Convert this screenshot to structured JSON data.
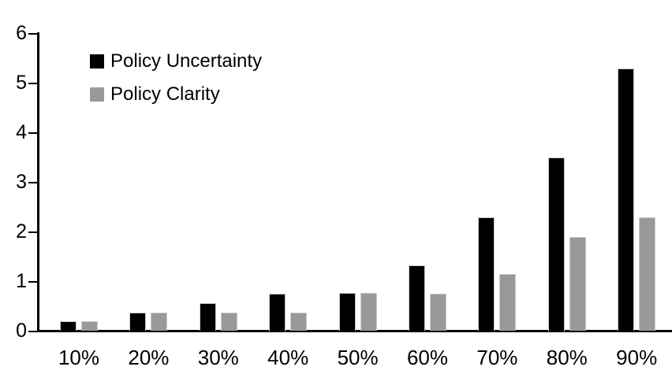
{
  "chart_data": {
    "type": "bar",
    "title": "",
    "xlabel": "",
    "ylabel": "",
    "categories": [
      "10%",
      "20%",
      "30%",
      "40%",
      "50%",
      "60%",
      "70%",
      "80%",
      "90%"
    ],
    "series": [
      {
        "name": "Policy Uncertainty",
        "color": "#000000",
        "values": [
          0.2,
          0.38,
          0.56,
          0.75,
          0.77,
          1.33,
          2.3,
          3.5,
          5.3
        ]
      },
      {
        "name": "Policy Clarity",
        "color": "#999999",
        "values": [
          0.2,
          0.38,
          0.38,
          0.38,
          0.77,
          0.76,
          1.15,
          1.9,
          2.3
        ]
      }
    ],
    "ylim": [
      0,
      6
    ],
    "yticks": [
      0,
      1,
      2,
      3,
      4,
      5,
      6
    ],
    "grid": false,
    "legend_position": "top-left-inside"
  },
  "colors": {
    "axis": "#000000",
    "text": "#000000",
    "background": "#ffffff",
    "bar_border": "#c9c9c9"
  }
}
